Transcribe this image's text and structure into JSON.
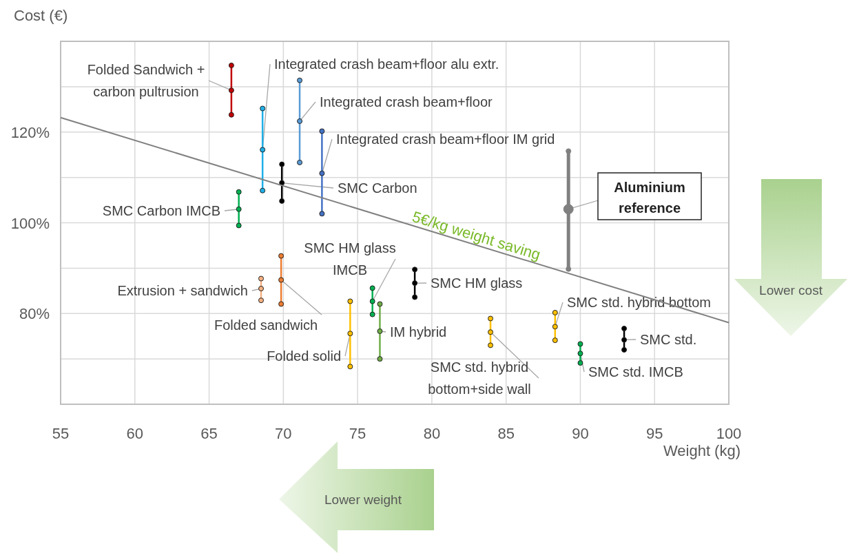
{
  "chart_data": {
    "type": "line",
    "xlabel": "Weight (kg)",
    "ylabel": "Cost (€)",
    "xlim": [
      55,
      100
    ],
    "xticks": [
      55,
      60,
      65,
      70,
      75,
      80,
      85,
      90,
      95,
      100
    ],
    "ylim": [
      60,
      140
    ],
    "yticks": [
      {
        "value": 60,
        "label": null
      },
      {
        "value": 70,
        "label": null
      },
      {
        "value": 80,
        "label": "80%"
      },
      {
        "value": 90,
        "label": null
      },
      {
        "value": 100,
        "label": "100%"
      },
      {
        "value": 110,
        "label": null
      },
      {
        "value": 120,
        "label": "120%"
      },
      {
        "value": 130,
        "label": null
      },
      {
        "value": 140,
        "label": null
      }
    ],
    "grid": true,
    "marker": "circle",
    "series": [
      {
        "name": "Folded Sandwich + carbon pultrusion",
        "color": "#c00000",
        "x": [
          66.5,
          66.5,
          66.5
        ],
        "values": [
          123.8,
          129.2,
          134.7
        ]
      },
      {
        "name": "Integrated crash beam+floor alu extr.",
        "color": "#1fb0e8",
        "x": [
          68.6,
          68.6,
          68.6
        ],
        "values": [
          107.1,
          116.1,
          125.2
        ]
      },
      {
        "name": "Integrated crash beam+floor",
        "color": "#5b9bd5",
        "x": [
          71.1,
          71.1,
          71.1
        ],
        "values": [
          113.3,
          122.4,
          131.4
        ]
      },
      {
        "name": "Integrated crash beam+floor IM grid",
        "color": "#4472c4",
        "x": [
          72.6,
          72.6,
          72.6
        ],
        "values": [
          102.0,
          110.9,
          120.2
        ]
      },
      {
        "name": "SMC Carbon",
        "color": "#000000",
        "x": [
          69.9,
          69.9,
          69.9
        ],
        "values": [
          104.8,
          108.8,
          112.9
        ]
      },
      {
        "name": "SMC Carbon IMCB",
        "color": "#00b050",
        "x": [
          67.0,
          67.0,
          67.0
        ],
        "values": [
          99.4,
          103.0,
          106.8
        ]
      },
      {
        "name": "Aluminium reference",
        "color": "#808080",
        "x": [
          89.2,
          89.2,
          89.2
        ],
        "values": [
          89.8,
          103.0,
          115.8
        ]
      },
      {
        "name": "Extrusion + sandwich",
        "color": "#f4b183",
        "x": [
          68.5,
          68.5,
          68.5
        ],
        "values": [
          82.9,
          85.5,
          87.7
        ]
      },
      {
        "name": "Folded sandwich",
        "color": "#ed7d31",
        "x": [
          69.85,
          69.85,
          69.85
        ],
        "values": [
          82.1,
          87.4,
          92.7
        ]
      },
      {
        "name": "Folded solid",
        "color": "#ffc000",
        "x": [
          74.5,
          74.5,
          74.5
        ],
        "values": [
          68.3,
          75.6,
          82.7
        ]
      },
      {
        "name": "SMC HM glass IMCB",
        "color": "#00b050",
        "x": [
          76.0,
          76.0,
          76.0
        ],
        "values": [
          79.8,
          82.7,
          85.6
        ]
      },
      {
        "name": "IM hybrid",
        "color": "#70ad47",
        "x": [
          76.5,
          76.5,
          76.5
        ],
        "values": [
          70.0,
          76.1,
          82.1
        ]
      },
      {
        "name": "SMC HM glass",
        "color": "#000000",
        "x": [
          78.85,
          78.85,
          78.85
        ],
        "values": [
          83.6,
          86.7,
          89.7
        ]
      },
      {
        "name": "SMC std. hybrid bottom+side wall",
        "color": "#ffc000",
        "x": [
          83.95,
          83.95,
          83.95
        ],
        "values": [
          73.0,
          75.9,
          78.9
        ]
      },
      {
        "name": "SMC std. hybrid bottom",
        "color": "#ffc000",
        "x": [
          88.3,
          88.3,
          88.3
        ],
        "values": [
          74.1,
          77.1,
          80.2
        ]
      },
      {
        "name": "SMC std. IMCB",
        "color": "#00b050",
        "x": [
          90.0,
          90.0,
          90.0
        ],
        "values": [
          69.1,
          71.2,
          73.3
        ]
      },
      {
        "name": "SMC std.",
        "color": "#000000",
        "x": [
          92.95,
          92.95,
          92.95
        ],
        "values": [
          72.0,
          74.2,
          76.7
        ]
      },
      {
        "name": "5€/kg weight saving",
        "color": "#808080",
        "marker": "none",
        "x": [
          55,
          100
        ],
        "values": [
          123.2,
          78.0
        ]
      }
    ],
    "annotations": [
      "Lower weight",
      "Lower cost"
    ]
  }
}
